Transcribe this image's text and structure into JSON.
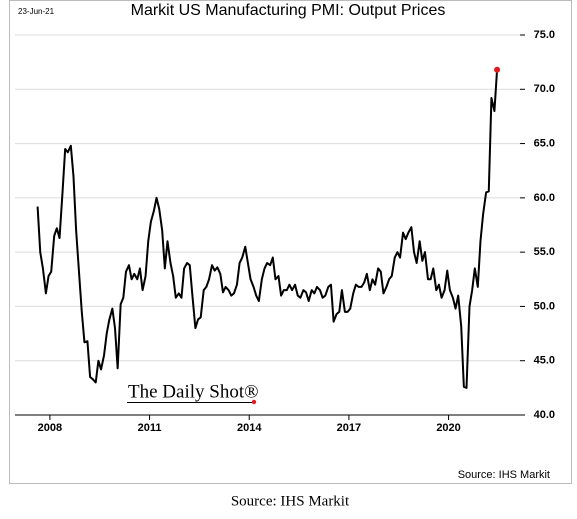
{
  "chart_data": {
    "type": "line",
    "title": "Markit US Manufacturing PMI: Output Prices",
    "date_label": "23-Jun-21",
    "watermark": "The Daily Shot®",
    "source": "Source: IHS Markit",
    "caption": "Source: IHS Markit",
    "x": [
      2007.63,
      2007.71,
      2007.79,
      2007.88,
      2007.96,
      2008.04,
      2008.13,
      2008.21,
      2008.29,
      2008.38,
      2008.46,
      2008.54,
      2008.63,
      2008.71,
      2008.79,
      2008.88,
      2008.96,
      2009.04,
      2009.13,
      2009.21,
      2009.29,
      2009.38,
      2009.46,
      2009.54,
      2009.63,
      2009.71,
      2009.79,
      2009.88,
      2009.96,
      2010.04,
      2010.13,
      2010.21,
      2010.29,
      2010.38,
      2010.46,
      2010.54,
      2010.63,
      2010.71,
      2010.79,
      2010.88,
      2010.96,
      2011.04,
      2011.13,
      2011.21,
      2011.29,
      2011.38,
      2011.46,
      2011.54,
      2011.63,
      2011.71,
      2011.79,
      2011.88,
      2011.96,
      2012.04,
      2012.13,
      2012.21,
      2012.29,
      2012.38,
      2012.46,
      2012.54,
      2012.63,
      2012.71,
      2012.79,
      2012.88,
      2012.96,
      2013.04,
      2013.13,
      2013.21,
      2013.29,
      2013.38,
      2013.46,
      2013.54,
      2013.63,
      2013.71,
      2013.79,
      2013.88,
      2013.96,
      2014.04,
      2014.13,
      2014.21,
      2014.29,
      2014.38,
      2014.46,
      2014.54,
      2014.63,
      2014.71,
      2014.79,
      2014.88,
      2014.96,
      2015.04,
      2015.13,
      2015.21,
      2015.29,
      2015.38,
      2015.46,
      2015.54,
      2015.63,
      2015.71,
      2015.79,
      2015.88,
      2015.96,
      2016.04,
      2016.13,
      2016.21,
      2016.29,
      2016.38,
      2016.46,
      2016.54,
      2016.63,
      2016.71,
      2016.79,
      2016.88,
      2016.96,
      2017.04,
      2017.13,
      2017.21,
      2017.29,
      2017.38,
      2017.46,
      2017.54,
      2017.63,
      2017.71,
      2017.79,
      2017.88,
      2017.96,
      2018.04,
      2018.13,
      2018.21,
      2018.29,
      2018.38,
      2018.46,
      2018.54,
      2018.63,
      2018.71,
      2018.79,
      2018.88,
      2018.96,
      2019.04,
      2019.13,
      2019.21,
      2019.29,
      2019.38,
      2019.46,
      2019.54,
      2019.63,
      2019.71,
      2019.79,
      2019.88,
      2019.96,
      2020.04,
      2020.13,
      2020.21,
      2020.29,
      2020.38,
      2020.46,
      2020.54,
      2020.63,
      2020.71,
      2020.79,
      2020.88,
      2020.96,
      2021.04,
      2021.13,
      2021.21,
      2021.29,
      2021.38,
      2021.46
    ],
    "series": [
      {
        "color": "#000000",
        "values": [
          59.2,
          55,
          53.5,
          51.2,
          52.8,
          53.2,
          56.5,
          57.2,
          56.3,
          60.5,
          64.5,
          64.2,
          64.8,
          62,
          57,
          53,
          49.5,
          46.7,
          46.8,
          43.5,
          43.3,
          43,
          45,
          44.2,
          45.5,
          47.5,
          48.8,
          49.8,
          48,
          44.3,
          50.2,
          50.8,
          53.2,
          53.8,
          52.5,
          53,
          52.5,
          53.5,
          51.5,
          52.8,
          56,
          57.8,
          58.8,
          60,
          59,
          57,
          53.5,
          56,
          54,
          52.8,
          50.8,
          51.2,
          50.8,
          53.5,
          54,
          53.8,
          51,
          48,
          48.8,
          49,
          51.5,
          51.8,
          52.5,
          53.8,
          53.3,
          53.6,
          53,
          51.3,
          51.8,
          51.5,
          51,
          51.2,
          52,
          54,
          54.5,
          55.5,
          54,
          52.5,
          51.8,
          51,
          50.5,
          52.5,
          53.5,
          54,
          53.8,
          54.5,
          52.5,
          52.8,
          51,
          51.5,
          51.5,
          52,
          51.5,
          52,
          51,
          50.8,
          51.5,
          51.3,
          50.5,
          51.5,
          51.2,
          51.8,
          51.5,
          50.8,
          51,
          51.8,
          52,
          48.6,
          49.3,
          49.5,
          51.5,
          49.5,
          49.5,
          49.8,
          51.2,
          52,
          51.8,
          51.8,
          52.2,
          53,
          51.5,
          52.5,
          52,
          53.5,
          53.2,
          51.2,
          51.8,
          52.5,
          52.8,
          54.5,
          55,
          54.5,
          56.8,
          56.2,
          56.8,
          57.3,
          55,
          54,
          56,
          54.2,
          55,
          52.5,
          52.5,
          53.5,
          51.5,
          52,
          50.8,
          51.5,
          53.3,
          51.5,
          50.8,
          49.8,
          51,
          48.2,
          42.6,
          42.5,
          50,
          51.5,
          53.5,
          51.8,
          56,
          58.5,
          60.5,
          60.6,
          69.2,
          68,
          71.8
        ]
      }
    ],
    "end_marker_color": "#e31a1c",
    "xlim": [
      2006.95,
      2022.15
    ],
    "xticks": [
      2008,
      2011,
      2014,
      2017,
      2020
    ],
    "ylim": [
      40,
      75
    ],
    "yticks": [
      {
        "value": 40,
        "label": "40.0"
      },
      {
        "value": 45,
        "label": "45.0"
      },
      {
        "value": 50,
        "label": "50.0"
      },
      {
        "value": 55,
        "label": "55.0"
      },
      {
        "value": 60,
        "label": "60.0"
      },
      {
        "value": 65,
        "label": "65.0"
      },
      {
        "value": 70,
        "label": "70.0"
      },
      {
        "value": 75,
        "label": "75.0"
      }
    ],
    "y_axis_side": "right",
    "grid": true
  }
}
